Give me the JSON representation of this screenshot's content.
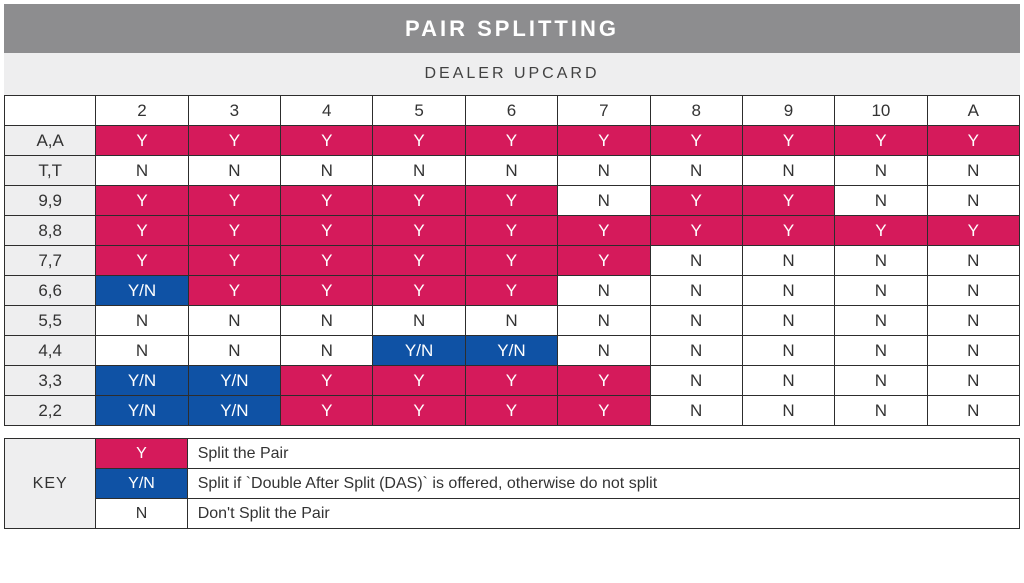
{
  "title": "PAIR SPLITTING",
  "subtitle": "DEALER UPCARD",
  "colors": {
    "Y": {
      "bg": "#d51a5b",
      "fg": "#ffffff"
    },
    "YN": {
      "bg": "#0f52a5",
      "fg": "#ffffff"
    },
    "N": {
      "bg": "#ffffff",
      "fg": "#333333"
    }
  },
  "col_headers": [
    "2",
    "3",
    "4",
    "5",
    "6",
    "7",
    "8",
    "9",
    "10",
    "A"
  ],
  "rows": [
    {
      "label": "A,A",
      "cells": [
        "Y",
        "Y",
        "Y",
        "Y",
        "Y",
        "Y",
        "Y",
        "Y",
        "Y",
        "Y"
      ]
    },
    {
      "label": "T,T",
      "cells": [
        "N",
        "N",
        "N",
        "N",
        "N",
        "N",
        "N",
        "N",
        "N",
        "N"
      ]
    },
    {
      "label": "9,9",
      "cells": [
        "Y",
        "Y",
        "Y",
        "Y",
        "Y",
        "N",
        "Y",
        "Y",
        "N",
        "N"
      ]
    },
    {
      "label": "8,8",
      "cells": [
        "Y",
        "Y",
        "Y",
        "Y",
        "Y",
        "Y",
        "Y",
        "Y",
        "Y",
        "Y"
      ]
    },
    {
      "label": "7,7",
      "cells": [
        "Y",
        "Y",
        "Y",
        "Y",
        "Y",
        "Y",
        "N",
        "N",
        "N",
        "N"
      ]
    },
    {
      "label": "6,6",
      "cells": [
        "YN",
        "Y",
        "Y",
        "Y",
        "Y",
        "N",
        "N",
        "N",
        "N",
        "N"
      ]
    },
    {
      "label": "5,5",
      "cells": [
        "N",
        "N",
        "N",
        "N",
        "N",
        "N",
        "N",
        "N",
        "N",
        "N"
      ]
    },
    {
      "label": "4,4",
      "cells": [
        "N",
        "N",
        "N",
        "YN",
        "YN",
        "N",
        "N",
        "N",
        "N",
        "N"
      ]
    },
    {
      "label": "3,3",
      "cells": [
        "YN",
        "YN",
        "Y",
        "Y",
        "Y",
        "Y",
        "N",
        "N",
        "N",
        "N"
      ]
    },
    {
      "label": "2,2",
      "cells": [
        "YN",
        "YN",
        "Y",
        "Y",
        "Y",
        "Y",
        "N",
        "N",
        "N",
        "N"
      ]
    }
  ],
  "cell_text": {
    "Y": "Y",
    "YN": "Y/N",
    "N": "N"
  },
  "key_label": "KEY",
  "key_rows": [
    {
      "code": "Y",
      "desc": "Split the Pair"
    },
    {
      "code": "YN",
      "desc": "Split if `Double After Split (DAS)` is offered, otherwise do not split"
    },
    {
      "code": "N",
      "desc": "Don't Split the Pair"
    }
  ],
  "layout": {
    "row_header_width_pct": 9.0,
    "key_swatch_width_pct": 9.0
  }
}
